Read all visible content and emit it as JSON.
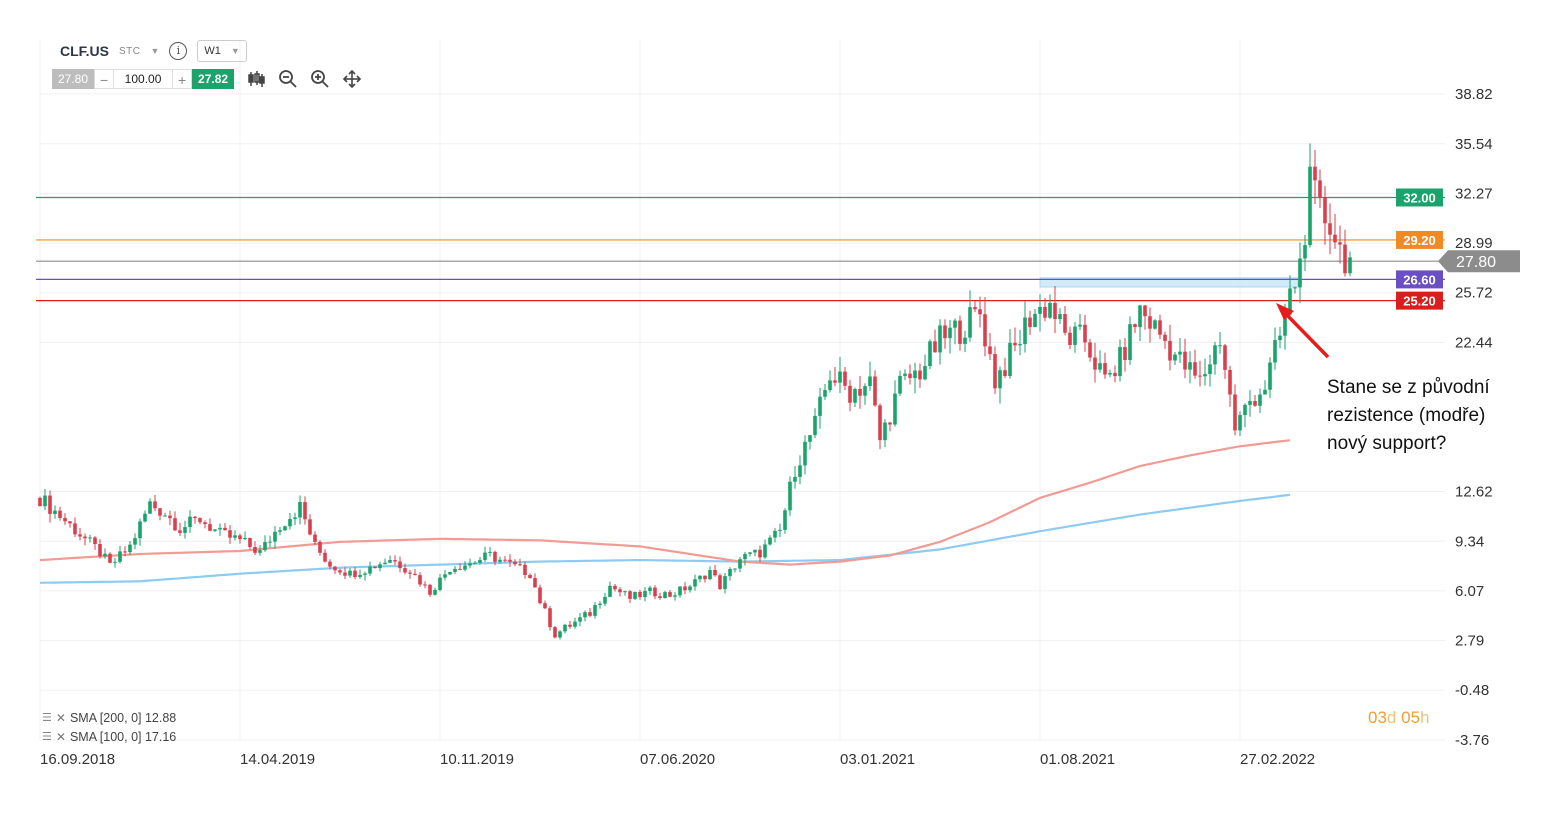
{
  "toolbar": {
    "symbol": "CLF.US",
    "type": "STC",
    "timeframe": "W1"
  },
  "trade": {
    "bid": "27.80",
    "minus": "−",
    "quantity": "100.00",
    "plus": "+",
    "ask": "27.82"
  },
  "icons": [
    "candles-icon",
    "zoom-out-icon",
    "zoom-in-icon",
    "move-icon",
    "info-icon"
  ],
  "annotation": {
    "lines": [
      "Stane se z původní",
      "rezistence (modře)",
      "nový support?"
    ]
  },
  "countdown": {
    "days": "03",
    "days_unit": "d",
    "hours": "05",
    "hours_unit": "h"
  },
  "legend": [
    {
      "label": "SMA [200, 0] 12.88"
    },
    {
      "label": "SMA [100, 0] 17.16"
    }
  ],
  "colors": {
    "bull": "#1aa36b",
    "bear": "#d9404e",
    "sma200": "#8ecbf2",
    "sma100": "#f29a94",
    "line_green": "#1aa36b",
    "line_orange": "#f08a24",
    "line_gray": "#888888",
    "line_purple": "#6a4fc4",
    "line_red": "#d91e1e",
    "zone": "#cde9f8",
    "price_tag": "#8c8c8c"
  },
  "chart_data": {
    "type": "candlestick",
    "x_ticks": [
      "16.09.2018",
      "14.04.2019",
      "10.11.2019",
      "07.06.2020",
      "03.01.2021",
      "01.08.2021",
      "27.02.2022"
    ],
    "y_ticks": [
      38.82,
      35.54,
      32.27,
      28.99,
      25.72,
      22.44,
      12.62,
      9.34,
      6.07,
      2.79,
      -0.48,
      -3.76
    ],
    "y_tick_labels": [
      "38.82",
      "35.54",
      "32.27",
      "28.99",
      "25.72",
      "22.44",
      "12.62",
      "9.34",
      "6.07",
      "2.79",
      "-0.48",
      "-3.76"
    ],
    "horizontal_lines": [
      {
        "value": 32.0,
        "label": "32.00",
        "color": "#1aa36b"
      },
      {
        "value": 29.2,
        "label": "29.20",
        "color": "#f08a24"
      },
      {
        "value": 27.8,
        "label": "27.80",
        "color": "#8c8c8c",
        "current": true
      },
      {
        "value": 26.6,
        "label": "26.60",
        "color": "#6a4fc4"
      },
      {
        "value": 25.2,
        "label": "25.20",
        "color": "#d91e1e"
      }
    ],
    "resistance_zone": {
      "from_date": "01.08.2021",
      "to_date": "20.03.2022",
      "low": 26.1,
      "high": 26.7
    },
    "sma": [
      {
        "name": "SMA [200, 0]",
        "last": 12.88
      },
      {
        "name": "SMA [100, 0]",
        "last": 17.16
      }
    ],
    "weekly_close_path": [
      [
        0,
        12.2
      ],
      [
        4,
        11.0
      ],
      [
        8,
        9.8
      ],
      [
        12,
        8.6
      ],
      [
        14,
        7.7
      ],
      [
        18,
        9.0
      ],
      [
        22,
        11.8
      ],
      [
        25,
        11.2
      ],
      [
        28,
        10.2
      ],
      [
        32,
        10.8
      ],
      [
        36,
        9.8
      ],
      [
        40,
        9.4
      ],
      [
        44,
        8.6
      ],
      [
        48,
        10.4
      ],
      [
        52,
        11.6
      ],
      [
        55,
        9.0
      ],
      [
        58,
        7.8
      ],
      [
        62,
        7.2
      ],
      [
        66,
        7.6
      ],
      [
        70,
        8.2
      ],
      [
        74,
        7.4
      ],
      [
        78,
        6.0
      ],
      [
        82,
        7.6
      ],
      [
        86,
        7.9
      ],
      [
        90,
        8.4
      ],
      [
        94,
        7.8
      ],
      [
        98,
        7.2
      ],
      [
        100,
        5.4
      ],
      [
        103,
        3.2
      ],
      [
        106,
        3.8
      ],
      [
        110,
        4.6
      ],
      [
        114,
        6.4
      ],
      [
        118,
        5.6
      ],
      [
        122,
        6.0
      ],
      [
        126,
        5.8
      ],
      [
        130,
        6.4
      ],
      [
        134,
        7.4
      ],
      [
        136,
        6.4
      ],
      [
        140,
        8.2
      ],
      [
        144,
        8.6
      ],
      [
        148,
        10.0
      ],
      [
        151,
        14.2
      ],
      [
        155,
        17.0
      ],
      [
        158,
        20.4
      ],
      [
        162,
        19.2
      ],
      [
        166,
        19.8
      ],
      [
        168,
        16.0
      ],
      [
        172,
        19.6
      ],
      [
        176,
        20.6
      ],
      [
        180,
        22.6
      ],
      [
        184,
        23.4
      ],
      [
        188,
        24.4
      ],
      [
        191,
        20.0
      ],
      [
        195,
        22.0
      ],
      [
        198,
        24.2
      ],
      [
        202,
        25.0
      ],
      [
        205,
        22.8
      ],
      [
        209,
        22.6
      ],
      [
        213,
        19.8
      ],
      [
        216,
        21.2
      ],
      [
        220,
        24.6
      ],
      [
        224,
        23.0
      ],
      [
        228,
        21.2
      ],
      [
        232,
        19.8
      ],
      [
        236,
        22.8
      ],
      [
        239,
        16.8
      ],
      [
        242,
        18.6
      ],
      [
        245,
        19.6
      ],
      [
        248,
        22.8
      ],
      [
        250,
        25.4
      ],
      [
        252,
        27.6
      ],
      [
        254,
        32.6
      ],
      [
        256,
        31.0
      ],
      [
        258,
        30.4
      ],
      [
        260,
        28.6
      ],
      [
        262,
        27.8
      ]
    ],
    "sma200_path": [
      [
        0,
        6.6
      ],
      [
        20,
        6.7
      ],
      [
        40,
        7.2
      ],
      [
        60,
        7.6
      ],
      [
        80,
        7.8
      ],
      [
        100,
        8.0
      ],
      [
        120,
        8.1
      ],
      [
        140,
        8.0
      ],
      [
        160,
        8.1
      ],
      [
        180,
        8.8
      ],
      [
        200,
        10.0
      ],
      [
        220,
        11.1
      ],
      [
        240,
        12.0
      ],
      [
        262,
        12.88
      ]
    ],
    "sma100_path": [
      [
        0,
        8.1
      ],
      [
        20,
        8.5
      ],
      [
        40,
        8.7
      ],
      [
        60,
        9.3
      ],
      [
        80,
        9.5
      ],
      [
        100,
        9.4
      ],
      [
        120,
        9.0
      ],
      [
        140,
        8.0
      ],
      [
        150,
        7.8
      ],
      [
        160,
        8.0
      ],
      [
        170,
        8.4
      ],
      [
        180,
        9.3
      ],
      [
        190,
        10.6
      ],
      [
        200,
        12.2
      ],
      [
        210,
        13.2
      ],
      [
        220,
        14.3
      ],
      [
        230,
        15.0
      ],
      [
        240,
        15.6
      ],
      [
        250,
        16.0
      ],
      [
        262,
        17.16
      ]
    ]
  }
}
